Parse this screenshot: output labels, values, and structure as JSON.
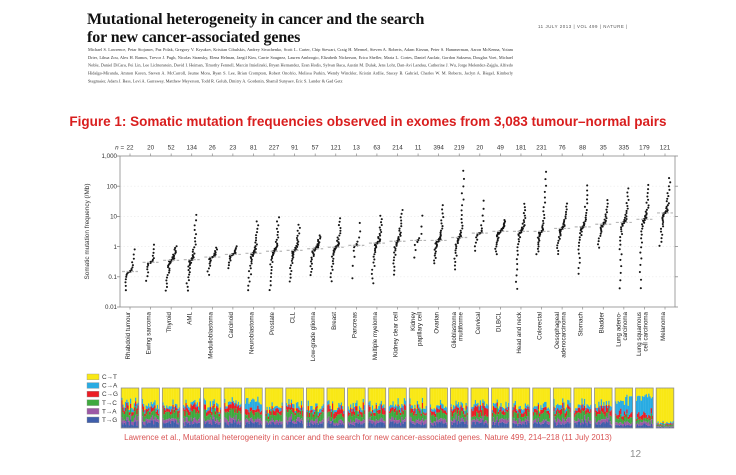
{
  "header": {
    "title_line1": "Mutational heterogeneity in cancer and the search",
    "title_line2": "for new cancer-associated genes",
    "journal_info": "11 JULY 2013 | VOL 499 | NATURE |",
    "authors": "Michael S. Lawrence, Petar Stojanov, Paz Polak, Gregory V. Kryukov, Kristian Cibulskis, Andrey Sivachenko, Scott L. Carter, Chip Stewart, Craig H. Mermel, Steven A. Roberts, Adam Kiezun, Peter S. Hammerman, Aaron McKenna, Yotam Drier, Lihua Zou, Alex H. Ramos, Trevor J. Pugh, Nicolas Stransky, Elena Helman, Jaegil Kim, Carrie Sougnez, Lauren Ambrogio, Elizabeth Nickerson, Erica Shefler, Maria L. Cortes, Daniel Auclair, Gordon Saksena, Douglas Voet, Michael Noble, Daniel DiCara, Pei Lin, Lee Lichtenstein, David I. Heiman, Timothy Fennell, Marcin Imielinski, Bryan Hernandez, Eran Hodis, Sylvan Baca, Austin M. Dulak, Jens Lohr, Dan-Avi Landau, Catherine J. Wu, Jorge Melendez-Zajgla, Alfredo Hidalgo-Miranda, Amnon Koren, Steven A. McCarroll, Jaume Mora, Ryan S. Lee, Brian Crompton, Robert Onofrio, Melissa Parkin, Wendy Winckler, Kristin Ardlie, Stacey B. Gabriel, Charles W. M. Roberts, Jaclyn A. Biegel, Kimberly Stegmaier, Adam J. Bass, Levi A. Garraway, Matthew Meyerson, Todd R. Golub, Dmitry A. Gordenin, Shamil Sunyaev, Eric S. Lander & Gad Getz"
  },
  "figure_caption": "Figure 1: Somatic mutation frequencies observed in exomes from 3,083 tumour–normal pairs",
  "citation": "Lawrence et al., Mutational heterogeneity in cancer and the search for new cancer-associated genes. Nature 499, 214–218 (11 July 2013)",
  "page_number": "12",
  "colors": {
    "caption_red": "#d91e1e",
    "citation_red": "#d95555",
    "dot": "#161616",
    "median_dash": "#b8b8b8",
    "axis": "#8a8a8a",
    "tick_text": "#333333"
  },
  "legend": {
    "items": [
      {
        "label": "C→T",
        "color": "#F9E814"
      },
      {
        "label": "C→A",
        "color": "#29ABE2"
      },
      {
        "label": "C→G",
        "color": "#EC1C24"
      },
      {
        "label": "T→C",
        "color": "#3FA93F"
      },
      {
        "label": "T→A",
        "color": "#9C59A5"
      },
      {
        "label": "T→G",
        "color": "#3F5EAB"
      }
    ]
  },
  "chart_data": {
    "type": "scatter",
    "title": "",
    "xlabel": "",
    "ylabel": "Somatic mutation frequency (/Mb)",
    "yscale": "log",
    "ylim": [
      0.01,
      1000
    ],
    "yticks": [
      "1,000",
      "100",
      "10",
      "1",
      "0.1",
      "0.01"
    ],
    "n_prefix": "n =",
    "grid": "faint dashed decade lines",
    "legend_position": "bottom-left",
    "categories": [
      {
        "label": [
          "Rhabdoid tumour"
        ],
        "n": 22,
        "min": 0.03,
        "median": 0.15,
        "max": 1.0,
        "spectrum": [
          0.4,
          0.09,
          0.11,
          0.16,
          0.11,
          0.13
        ]
      },
      {
        "label": [
          "Ewing sarcoma"
        ],
        "n": 20,
        "min": 0.06,
        "median": 0.3,
        "max": 1.4,
        "spectrum": [
          0.42,
          0.1,
          0.1,
          0.16,
          0.09,
          0.13
        ]
      },
      {
        "label": [
          "Thyroid"
        ],
        "n": 52,
        "min": 0.03,
        "median": 0.35,
        "max": 1.1,
        "spectrum": [
          0.44,
          0.08,
          0.1,
          0.17,
          0.08,
          0.13
        ]
      },
      {
        "label": [
          "AML"
        ],
        "n": 134,
        "min": 0.03,
        "median": 0.37,
        "max": 14,
        "spectrum": [
          0.4,
          0.08,
          0.14,
          0.18,
          0.09,
          0.11
        ]
      },
      {
        "label": [
          "Medulloblastoma"
        ],
        "n": 26,
        "min": 0.1,
        "median": 0.45,
        "max": 1.0,
        "spectrum": [
          0.44,
          0.09,
          0.1,
          0.16,
          0.08,
          0.13
        ]
      },
      {
        "label": [
          "Carcinoid"
        ],
        "n": 23,
        "min": 0.17,
        "median": 0.55,
        "max": 1.1,
        "spectrum": [
          0.42,
          0.08,
          0.14,
          0.16,
          0.09,
          0.11
        ]
      },
      {
        "label": [
          "Neuroblastoma"
        ],
        "n": 81,
        "min": 0.03,
        "median": 0.6,
        "max": 8,
        "spectrum": [
          0.34,
          0.2,
          0.1,
          0.14,
          0.09,
          0.13
        ]
      },
      {
        "label": [
          "Prostate"
        ],
        "n": 227,
        "min": 0.03,
        "median": 0.7,
        "max": 11,
        "spectrum": [
          0.44,
          0.09,
          0.1,
          0.17,
          0.08,
          0.12
        ]
      },
      {
        "label": [
          "CLL"
        ],
        "n": 91,
        "min": 0.06,
        "median": 0.75,
        "max": 6,
        "spectrum": [
          0.46,
          0.09,
          0.09,
          0.16,
          0.08,
          0.12
        ]
      },
      {
        "label": [
          "Low-grade glioma"
        ],
        "n": 57,
        "min": 0.1,
        "median": 0.85,
        "max": 2.5,
        "spectrum": [
          0.48,
          0.08,
          0.09,
          0.17,
          0.07,
          0.11
        ]
      },
      {
        "label": [
          "Breast"
        ],
        "n": 121,
        "min": 0.06,
        "median": 0.95,
        "max": 10,
        "spectrum": [
          0.46,
          0.08,
          0.12,
          0.16,
          0.07,
          0.11
        ]
      },
      {
        "label": [
          "Pancreas"
        ],
        "n": 13,
        "min": 0.05,
        "median": 1.1,
        "max": 9,
        "spectrum": [
          0.44,
          0.1,
          0.1,
          0.16,
          0.08,
          0.12
        ]
      },
      {
        "label": [
          "Multiple myeloma"
        ],
        "n": 63,
        "min": 0.05,
        "median": 1.3,
        "max": 12,
        "spectrum": [
          0.44,
          0.09,
          0.11,
          0.17,
          0.08,
          0.11
        ]
      },
      {
        "label": [
          "Kidney clear cell"
        ],
        "n": 214,
        "min": 0.1,
        "median": 1.5,
        "max": 19,
        "spectrum": [
          0.4,
          0.1,
          0.09,
          0.19,
          0.09,
          0.13
        ]
      },
      {
        "label": [
          "Kidney",
          "papillary cell"
        ],
        "n": 11,
        "min": 0.3,
        "median": 1.6,
        "max": 18,
        "spectrum": [
          0.42,
          0.1,
          0.09,
          0.18,
          0.09,
          0.12
        ]
      },
      {
        "label": [
          "Ovarian"
        ],
        "n": 394,
        "min": 0.25,
        "median": 1.6,
        "max": 28,
        "spectrum": [
          0.42,
          0.1,
          0.11,
          0.16,
          0.09,
          0.12
        ]
      },
      {
        "label": [
          "Glioblastoma",
          "multiforme"
        ],
        "n": 219,
        "min": 0.15,
        "median": 2.0,
        "max": 450,
        "spectrum": [
          0.44,
          0.09,
          0.1,
          0.17,
          0.08,
          0.12
        ]
      },
      {
        "label": [
          "Cervical"
        ],
        "n": 20,
        "min": 0.6,
        "median": 2.8,
        "max": 47,
        "spectrum": [
          0.42,
          0.09,
          0.16,
          0.13,
          0.08,
          0.12
        ]
      },
      {
        "label": [
          "DLBCL"
        ],
        "n": 49,
        "min": 0.5,
        "median": 3.2,
        "max": 8,
        "spectrum": [
          0.44,
          0.09,
          0.11,
          0.16,
          0.08,
          0.12
        ]
      },
      {
        "label": [
          "Head and neck"
        ],
        "n": 181,
        "min": 0.03,
        "median": 3.2,
        "max": 30,
        "spectrum": [
          0.44,
          0.09,
          0.12,
          0.15,
          0.08,
          0.12
        ]
      },
      {
        "label": [
          "Colorectal"
        ],
        "n": 231,
        "min": 0.5,
        "median": 3.2,
        "max": 400,
        "spectrum": [
          0.46,
          0.08,
          0.1,
          0.17,
          0.07,
          0.12
        ]
      },
      {
        "label": [
          "Oesophageal",
          "adenocarcinoma"
        ],
        "n": 76,
        "min": 0.5,
        "median": 4.0,
        "max": 30,
        "spectrum": [
          0.4,
          0.12,
          0.1,
          0.16,
          0.1,
          0.12
        ]
      },
      {
        "label": [
          "Stomach"
        ],
        "n": 88,
        "min": 0.1,
        "median": 4.5,
        "max": 130,
        "spectrum": [
          0.42,
          0.11,
          0.1,
          0.17,
          0.08,
          0.12
        ]
      },
      {
        "label": [
          "Bladder"
        ],
        "n": 35,
        "min": 0.8,
        "median": 5.5,
        "max": 40,
        "spectrum": [
          0.4,
          0.12,
          0.12,
          0.15,
          0.09,
          0.12
        ]
      },
      {
        "label": [
          "Lung adeno-",
          "carcinoma"
        ],
        "n": 335,
        "min": 0.03,
        "median": 6.3,
        "max": 100,
        "spectrum": [
          0.3,
          0.33,
          0.1,
          0.13,
          0.07,
          0.07
        ]
      },
      {
        "label": [
          "Lung squamous",
          "cell carcinoma"
        ],
        "n": 179,
        "min": 0.03,
        "median": 8.0,
        "max": 130,
        "spectrum": [
          0.26,
          0.4,
          0.1,
          0.1,
          0.07,
          0.07
        ]
      },
      {
        "label": [
          "Melanoma"
        ],
        "n": 121,
        "min": 0.9,
        "median": 13,
        "max": 220,
        "spectrum": [
          0.85,
          0.04,
          0.03,
          0.04,
          0.02,
          0.02
        ]
      }
    ]
  }
}
